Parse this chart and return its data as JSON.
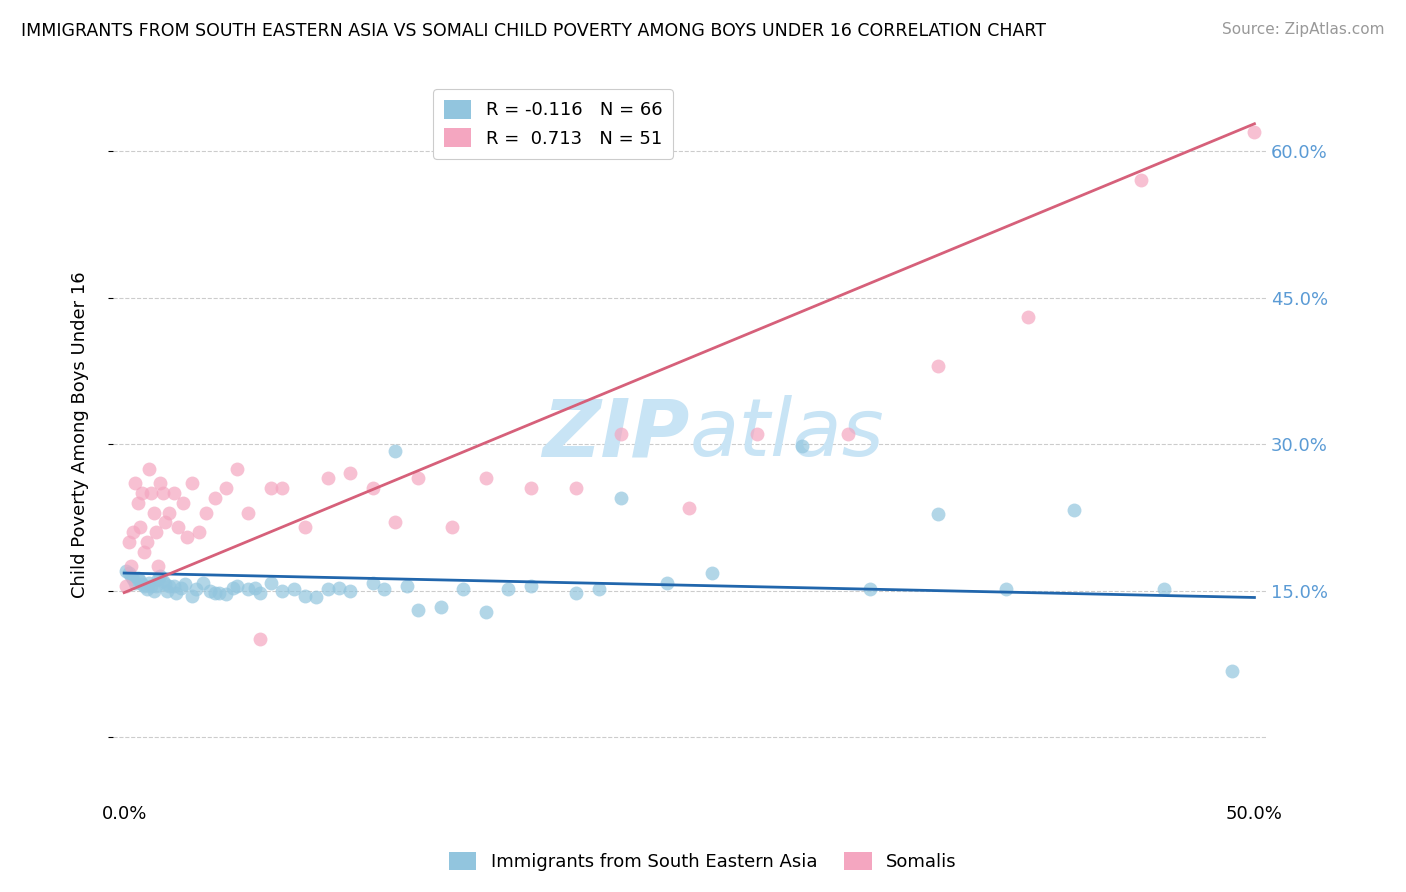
{
  "title": "IMMIGRANTS FROM SOUTH EASTERN ASIA VS SOMALI CHILD POVERTY AMONG BOYS UNDER 16 CORRELATION CHART",
  "source": "Source: ZipAtlas.com",
  "ylabel": "Child Poverty Among Boys Under 16",
  "yticks": [
    0.0,
    0.15,
    0.3,
    0.45,
    0.6
  ],
  "ytick_labels": [
    "",
    "15.0%",
    "30.0%",
    "45.0%",
    "60.0%"
  ],
  "xlim": [
    -0.005,
    0.505
  ],
  "ylim": [
    -0.06,
    0.68
  ],
  "legend_r1": "R = -0.116",
  "legend_n1": "N = 66",
  "legend_r2": "R =  0.713",
  "legend_n2": "N = 51",
  "color_blue": "#92c5de",
  "color_pink": "#f4a6c0",
  "color_line_blue": "#2166ac",
  "color_line_pink": "#d6607a",
  "watermark_zip": "ZIP",
  "watermark_atlas": "atlas",
  "watermark_color": "#c8e4f5",
  "blue_x": [
    0.001,
    0.002,
    0.003,
    0.004,
    0.005,
    0.006,
    0.007,
    0.008,
    0.009,
    0.01,
    0.011,
    0.012,
    0.013,
    0.014,
    0.015,
    0.016,
    0.017,
    0.018,
    0.019,
    0.02,
    0.022,
    0.023,
    0.025,
    0.027,
    0.03,
    0.032,
    0.035,
    0.038,
    0.04,
    0.042,
    0.045,
    0.048,
    0.05,
    0.055,
    0.058,
    0.06,
    0.065,
    0.07,
    0.075,
    0.08,
    0.085,
    0.09,
    0.095,
    0.1,
    0.11,
    0.115,
    0.125,
    0.13,
    0.14,
    0.15,
    0.16,
    0.17,
    0.18,
    0.2,
    0.22,
    0.24,
    0.26,
    0.3,
    0.33,
    0.36,
    0.39,
    0.42,
    0.46,
    0.49,
    0.12,
    0.21
  ],
  "blue_y": [
    0.17,
    0.168,
    0.165,
    0.162,
    0.158,
    0.163,
    0.16,
    0.157,
    0.155,
    0.152,
    0.158,
    0.155,
    0.15,
    0.155,
    0.162,
    0.165,
    0.16,
    0.157,
    0.15,
    0.155,
    0.155,
    0.148,
    0.153,
    0.157,
    0.145,
    0.152,
    0.158,
    0.15,
    0.148,
    0.148,
    0.147,
    0.153,
    0.155,
    0.152,
    0.153,
    0.148,
    0.158,
    0.15,
    0.152,
    0.145,
    0.143,
    0.152,
    0.153,
    0.15,
    0.158,
    0.152,
    0.155,
    0.13,
    0.133,
    0.152,
    0.128,
    0.152,
    0.155,
    0.148,
    0.245,
    0.158,
    0.168,
    0.298,
    0.152,
    0.228,
    0.152,
    0.233,
    0.152,
    0.068,
    0.293,
    0.152
  ],
  "pink_x": [
    0.001,
    0.002,
    0.003,
    0.004,
    0.005,
    0.006,
    0.007,
    0.008,
    0.009,
    0.01,
    0.011,
    0.012,
    0.013,
    0.014,
    0.015,
    0.016,
    0.017,
    0.018,
    0.02,
    0.022,
    0.024,
    0.026,
    0.028,
    0.03,
    0.033,
    0.036,
    0.04,
    0.045,
    0.05,
    0.055,
    0.06,
    0.065,
    0.07,
    0.08,
    0.09,
    0.1,
    0.11,
    0.12,
    0.13,
    0.145,
    0.16,
    0.18,
    0.2,
    0.22,
    0.25,
    0.28,
    0.32,
    0.36,
    0.4,
    0.45,
    0.5
  ],
  "pink_y": [
    0.155,
    0.2,
    0.175,
    0.21,
    0.26,
    0.24,
    0.215,
    0.25,
    0.19,
    0.2,
    0.275,
    0.25,
    0.23,
    0.21,
    0.175,
    0.26,
    0.25,
    0.22,
    0.23,
    0.25,
    0.215,
    0.24,
    0.205,
    0.26,
    0.21,
    0.23,
    0.245,
    0.255,
    0.275,
    0.23,
    0.1,
    0.255,
    0.255,
    0.215,
    0.265,
    0.27,
    0.255,
    0.22,
    0.265,
    0.215,
    0.265,
    0.255,
    0.255,
    0.31,
    0.235,
    0.31,
    0.31,
    0.38,
    0.43,
    0.57,
    0.62
  ],
  "blue_line_x": [
    0.0,
    0.5
  ],
  "blue_line_y": [
    0.168,
    0.143
  ],
  "pink_line_x": [
    0.0,
    0.5
  ],
  "pink_line_y": [
    0.148,
    0.628
  ]
}
